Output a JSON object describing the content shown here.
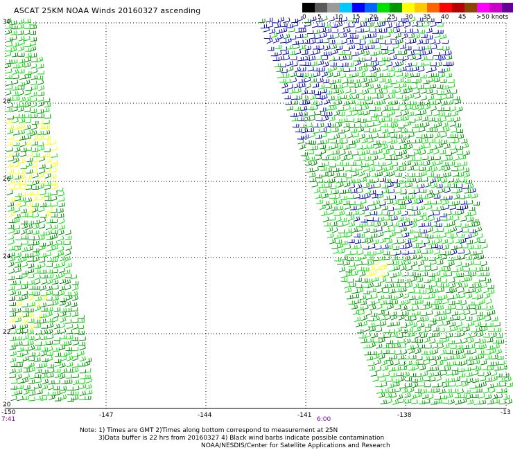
{
  "title": "ASCAT 25KM NOAA Winds 20160327 ascending",
  "legend": {
    "colors": [
      "#000000",
      "#5a5a5a",
      "#9a9a9a",
      "#00c8ff",
      "#0000ff",
      "#0064ff",
      "#00e000",
      "#009600",
      "#ffff00",
      "#ffc800",
      "#ff6400",
      "#ff0000",
      "#b40000",
      "#8c4600",
      "#ff00ff",
      "#c800c8",
      "#640096"
    ],
    "labels": [
      "0",
      "5",
      "10",
      "15",
      "20",
      "25",
      "30",
      "35",
      "40",
      "45",
      ">50 knots"
    ]
  },
  "latitudes": [
    "30",
    "28",
    "26",
    "24",
    "22",
    "20"
  ],
  "longitudes": [
    "-150",
    "-147",
    "-144",
    "-141",
    "-138",
    "-13"
  ],
  "times": [
    "7:41",
    "6:00"
  ],
  "notes": {
    "line1": "Note: 1) Times are GMT 2)Times along bottom correspond to measurement at 25N",
    "line2": "3)Data buffer is 22 hrs from 20160327 4) Black wind barbs indicate possible contamination",
    "line3": "NOAA/NESDIS/Center for Satellite Applications and Research"
  },
  "barb_colors": {
    "dark_green": "#008c00",
    "green": "#00dc00",
    "blue": "#0000b4",
    "yellow": "#ffff00",
    "black": "#000000"
  }
}
